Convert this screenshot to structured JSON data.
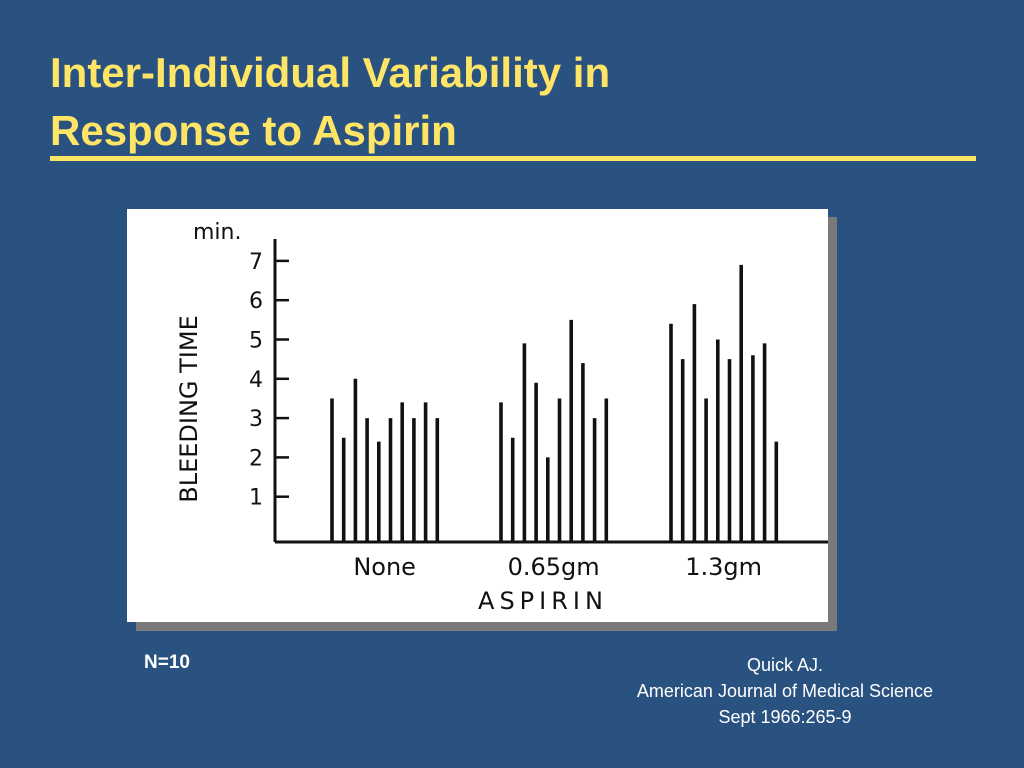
{
  "slide": {
    "title_line1": "Inter-Individual Variability in",
    "title_line2": "Response to Aspirin",
    "footnote": "N=10",
    "citation": [
      "Quick AJ.",
      "American Journal of Medical Science",
      "Sept 1966:265-9"
    ]
  },
  "colors": {
    "background": "#2a5280",
    "title": "#ffe566",
    "panel": "#ffffff",
    "ink": "#111111"
  },
  "chart_data": {
    "type": "bar",
    "title": "",
    "ylabel": "BLEEDING TIME",
    "yunit": "min.",
    "xlabel": "ASPIRIN",
    "ylim": [
      0,
      7.5
    ],
    "yticks": [
      1,
      2,
      3,
      4,
      5,
      6,
      7
    ],
    "grid": false,
    "groups": [
      {
        "name": "None",
        "values": [
          3.5,
          2.5,
          4.0,
          3.0,
          2.4,
          3.0,
          3.4,
          3.0,
          3.4,
          3.0
        ]
      },
      {
        "name": "0.65gm",
        "values": [
          3.4,
          2.5,
          4.9,
          3.9,
          2.0,
          3.5,
          5.5,
          4.4,
          3.0,
          3.5
        ]
      },
      {
        "name": "1.3gm",
        "values": [
          5.4,
          4.5,
          5.9,
          3.5,
          5.0,
          4.5,
          6.9,
          4.6,
          4.9,
          2.4
        ]
      }
    ]
  }
}
